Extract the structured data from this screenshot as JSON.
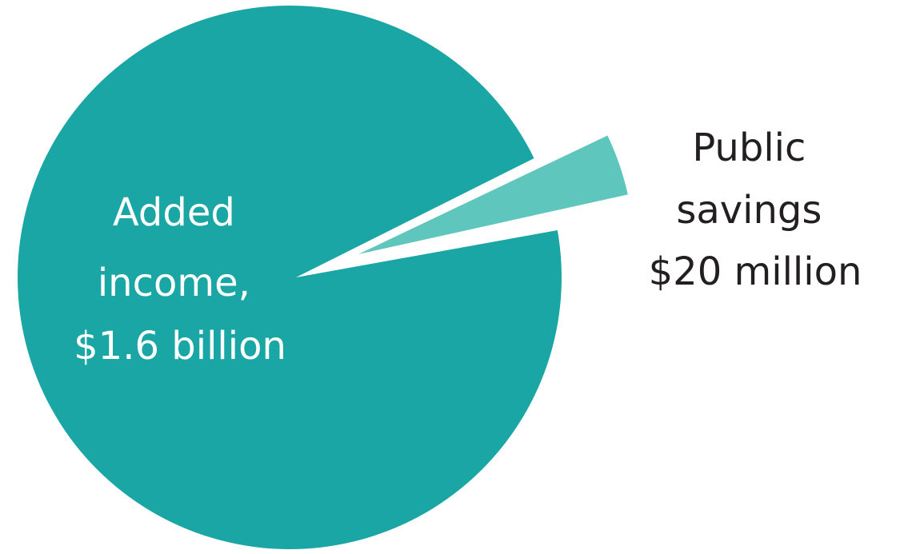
{
  "chart_data": {
    "type": "pie",
    "title": "",
    "slices": [
      {
        "label_lines": [
          "Added",
          "income,",
          "$1.6 billion"
        ],
        "value": 1600,
        "unit": "million USD",
        "color": "#1aa6a5",
        "label_color": "#ffffff",
        "exploded": false
      },
      {
        "label_lines": [
          "Public",
          "savings",
          "$20 million"
        ],
        "value": 20,
        "unit": "million USD",
        "color": "#5fc6be",
        "label_color": "#231f20",
        "exploded": true
      }
    ],
    "legend": "none",
    "display_note": "small slice drawn enlarged and pulled out from the pie"
  }
}
